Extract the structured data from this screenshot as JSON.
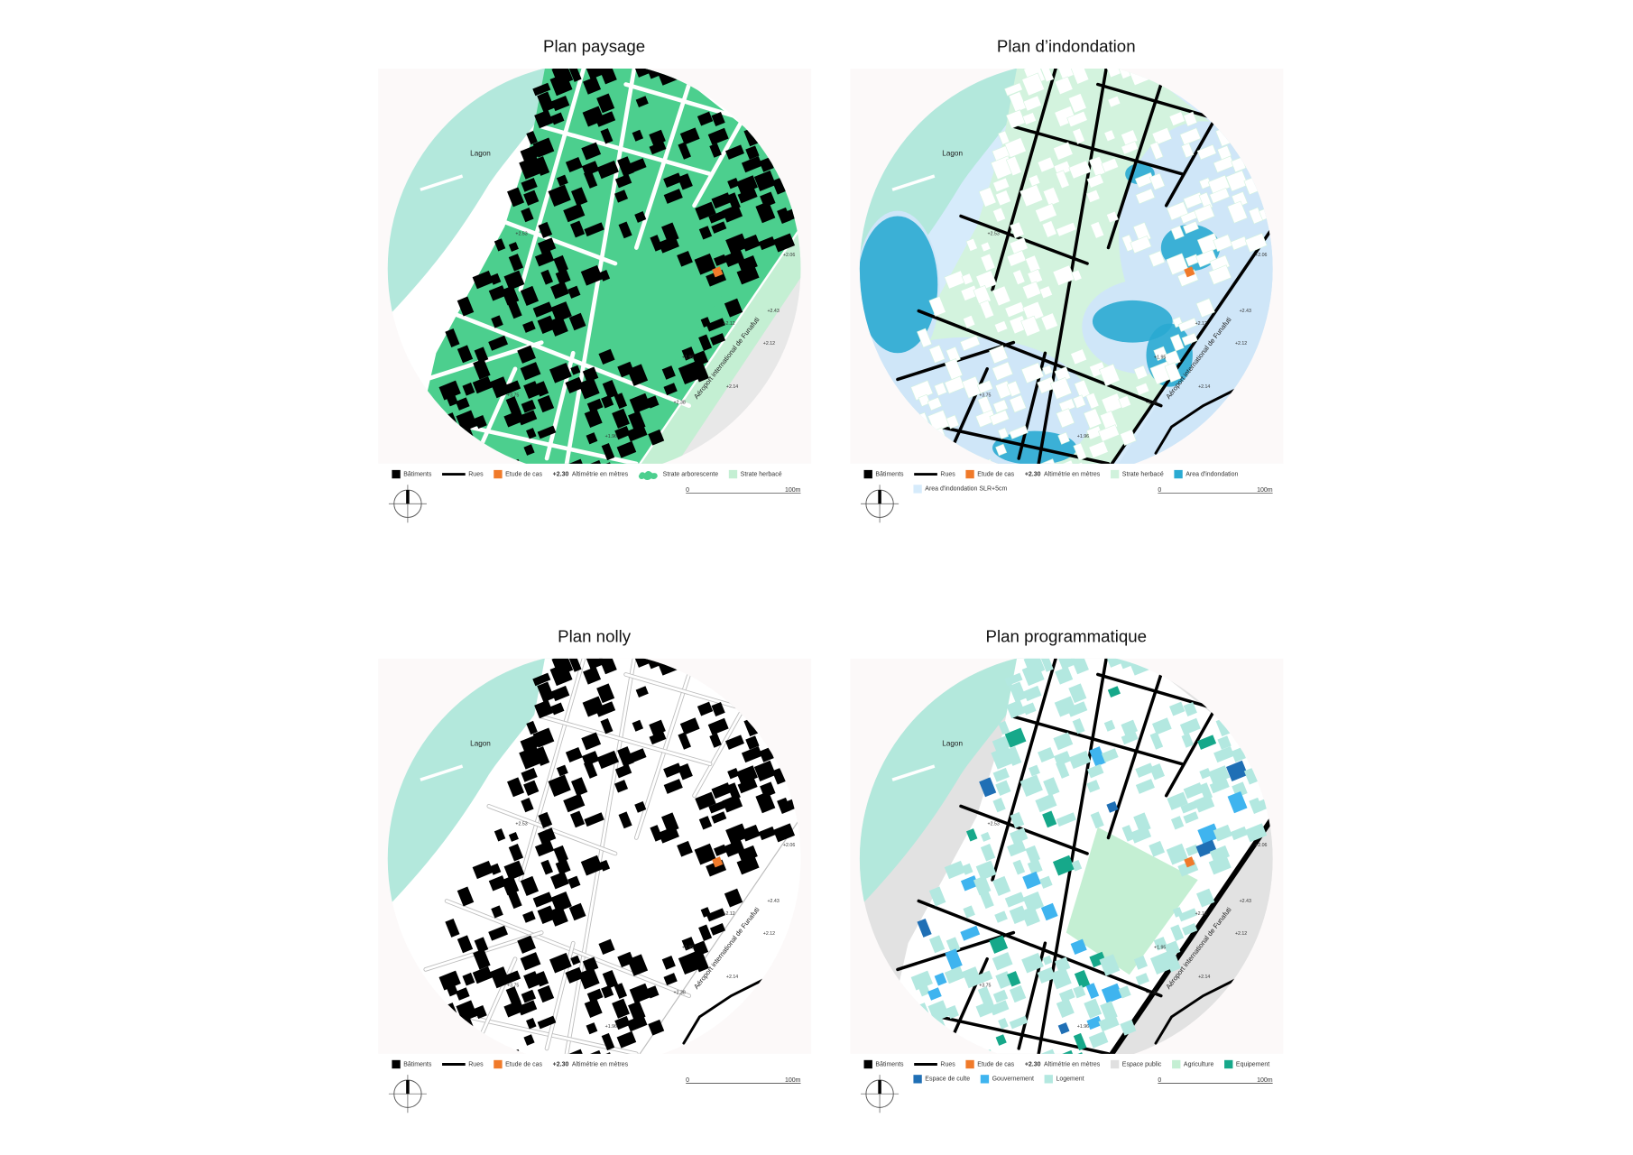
{
  "panels": [
    {
      "title": "Plan paysage",
      "legend": [
        [
          {
            "label": "Bâtiments",
            "swatch": "square",
            "color": "#000000"
          },
          {
            "label": "Rues",
            "swatch": "line",
            "color": "#000000"
          },
          {
            "label": "Etude de cas",
            "swatch": "square",
            "color": "#f07a2a"
          },
          {
            "symbol": "+2.30",
            "label": "Altimétrie en mètres"
          },
          {
            "label": "Strate arborescente",
            "swatch": "blob",
            "color": "#4ccf8e"
          },
          {
            "label": "Strate herbacé",
            "swatch": "square",
            "color": "#c4efd3"
          }
        ]
      ]
    },
    {
      "title": "Plan d’indondation",
      "legend": [
        [
          {
            "label": "Bâtiments",
            "swatch": "square",
            "color": "#000000"
          },
          {
            "label": "Rues",
            "swatch": "line",
            "color": "#000000"
          },
          {
            "label": "Etude de cas",
            "swatch": "square",
            "color": "#f07a2a"
          },
          {
            "symbol": "+2.30",
            "label": "Altimétrie en mètres"
          },
          {
            "label": "Strate herbacé",
            "swatch": "square",
            "color": "#d0f2dc"
          },
          {
            "label": "Area d'indondation",
            "swatch": "square",
            "color": "#2aaad2"
          }
        ],
        [
          {
            "label": "Area d'indondation SLR+5cm",
            "swatch": "square",
            "color": "#d6ebfb"
          }
        ]
      ]
    },
    {
      "title": "Plan nolly",
      "legend": [
        [
          {
            "label": "Bâtiments",
            "swatch": "square",
            "color": "#000000"
          },
          {
            "label": "Rues",
            "swatch": "line",
            "color": "#000000"
          },
          {
            "label": "Etude de cas",
            "swatch": "square",
            "color": "#f07a2a"
          },
          {
            "symbol": "+2.30",
            "label": "Altimétrie en mètres"
          }
        ]
      ]
    },
    {
      "title": "Plan programmatique",
      "legend": [
        [
          {
            "label": "Bâtiments",
            "swatch": "square",
            "color": "#000000"
          },
          {
            "label": "Rues",
            "swatch": "line",
            "color": "#000000"
          },
          {
            "label": "Etude de cas",
            "swatch": "square",
            "color": "#f07a2a"
          },
          {
            "symbol": "+2.30",
            "label": "Altimétrie en mètres"
          },
          {
            "label": "Espace public",
            "swatch": "square",
            "color": "#e0e0e0"
          },
          {
            "label": "Agriculture",
            "swatch": "square",
            "color": "#c4efd3"
          },
          {
            "label": "Equipement",
            "swatch": "square",
            "color": "#16a88a"
          }
        ],
        [
          {
            "label": "Espace de culte",
            "swatch": "square",
            "color": "#1f6fb5"
          },
          {
            "label": "Gouvernement",
            "swatch": "square",
            "color": "#3fb4ef"
          },
          {
            "label": "Logement",
            "swatch": "square",
            "color": "#b3e8e0"
          }
        ]
      ]
    }
  ],
  "map": {
    "lagoon": "Lagon",
    "airport": "Aéroport international de Funafuti",
    "altitudes": [
      "+2.53",
      "+2.06",
      "+2.43",
      "+2.12",
      "+2.12",
      "+1.95",
      "+2.38",
      "+2.14",
      "+1.96",
      "+3.75"
    ],
    "scale": [
      "0",
      "100m"
    ]
  }
}
